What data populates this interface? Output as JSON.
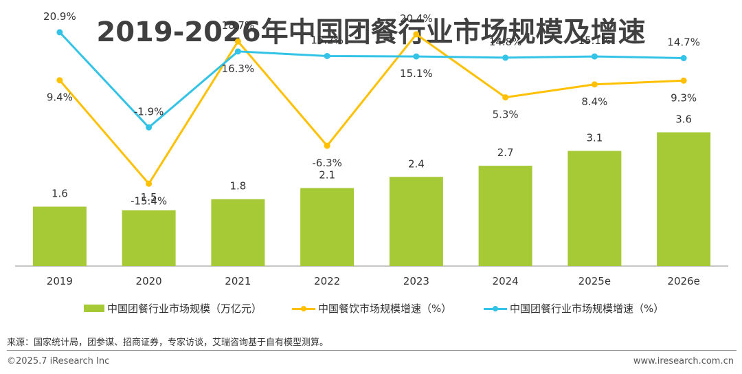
{
  "title": "2019-2026年中国团餐行业市场规模及增速",
  "chart_data": {
    "type": "bar",
    "categories": [
      "2019",
      "2020",
      "2021",
      "2022",
      "2023",
      "2024",
      "2025e",
      "2026e"
    ],
    "series": [
      {
        "name": "中国团餐行业市场规模（万亿元）",
        "type": "bar",
        "color": "#a6c936",
        "values": [
          1.6,
          1.5,
          1.8,
          2.1,
          2.4,
          2.7,
          3.1,
          3.6
        ],
        "labels": [
          "1.6",
          "1.5",
          "1.8",
          "2.1",
          "2.4",
          "2.7",
          "3.1",
          "3.6"
        ]
      },
      {
        "name": "中国餐饮市场规模增速（%）",
        "type": "line",
        "color": "#ffc000",
        "values": [
          9.4,
          -15.4,
          18.7,
          -6.3,
          20.4,
          5.3,
          8.4,
          9.3
        ],
        "labels": [
          "9.4%",
          "-15.4%",
          "18.7%",
          "-6.3%",
          "20.4%",
          "5.3%",
          "8.4%",
          "9.3%"
        ]
      },
      {
        "name": "中国团餐行业市场规模增速（%）",
        "type": "line",
        "color": "#33c3e6",
        "values": [
          20.9,
          -1.9,
          16.3,
          15.2,
          15.1,
          14.8,
          15.1,
          14.7
        ],
        "labels": [
          "20.9%",
          "-1.9%",
          "16.3%",
          "15.2%",
          "15.1%",
          "14.8%",
          "15.1%",
          "14.7%"
        ]
      }
    ],
    "bar_ylim": [
      0,
      5.7
    ],
    "line_ylim": [
      -17.5,
      25
    ],
    "grid": false,
    "legend_position": "bottom"
  },
  "source": "来源：国家统计局，团参谋、招商证券，专家访谈，艾瑞咨询基于自有模型测算。",
  "copyright": "©2025.7 iResearch Inc",
  "website": "www.iresearch.com.cn"
}
